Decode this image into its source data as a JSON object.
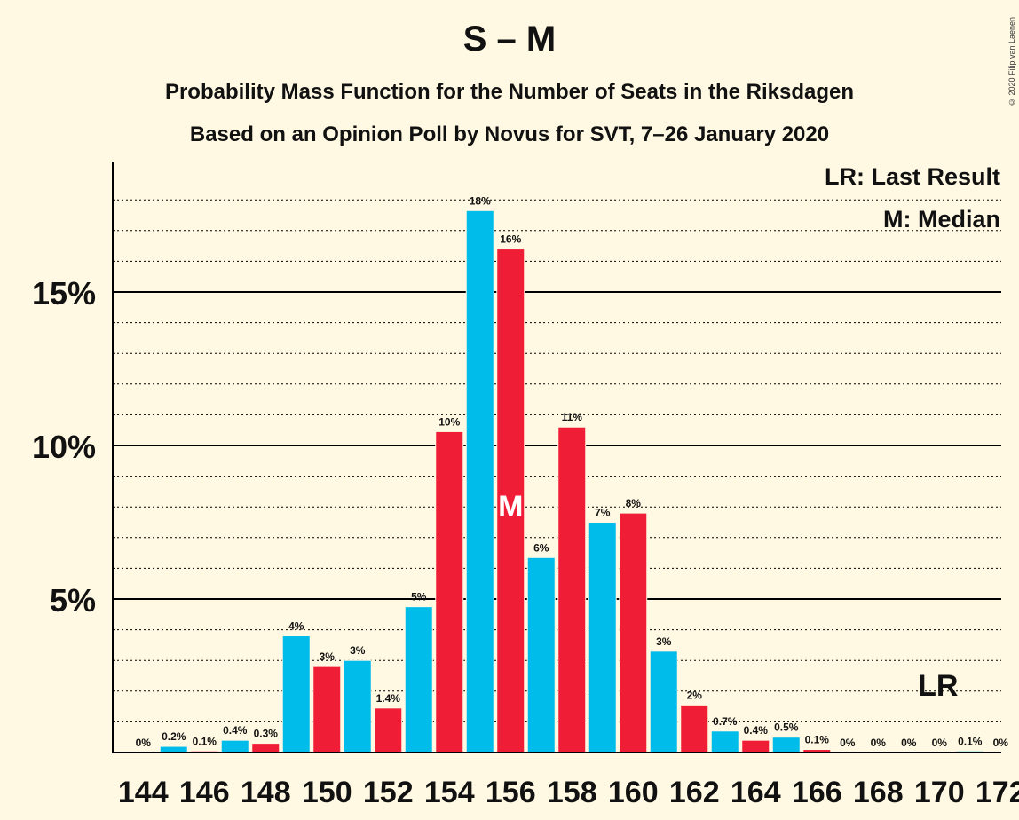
{
  "chart_data": {
    "type": "bar",
    "title": "S – M",
    "subtitle": "Probability Mass Function for the Number of Seats in the Riksdagen",
    "subtitle2": "Based on an Opinion Poll by Novus for SVT, 7–26 January 2020",
    "credit": "© 2020 Filip van Laenen",
    "legend": [
      "LR: Last Result",
      "M: Median"
    ],
    "ylim": [
      0,
      19
    ],
    "yticks": [
      {
        "value": 5,
        "label": "5%"
      },
      {
        "value": 10,
        "label": "10%"
      },
      {
        "value": 15,
        "label": "15%"
      }
    ],
    "xtick_labels": [
      "144",
      "146",
      "148",
      "150",
      "152",
      "154",
      "156",
      "158",
      "160",
      "162",
      "164",
      "166",
      "168",
      "170",
      "172"
    ],
    "median_seat": 156,
    "median_marker": "M",
    "last_result_seat": 171,
    "last_result_marker": "LR",
    "colors": {
      "odd": "#00BCEB",
      "even": "#EF1D35",
      "background": "#FFF8E2"
    },
    "bars": [
      {
        "seat": 144,
        "value": 0,
        "label": "0%"
      },
      {
        "seat": 145,
        "value": 0.2,
        "label": "0.2%"
      },
      {
        "seat": 146,
        "value": 0.05,
        "label": "0.1%"
      },
      {
        "seat": 147,
        "value": 0.4,
        "label": "0.4%"
      },
      {
        "seat": 148,
        "value": 0.3,
        "label": "0.3%"
      },
      {
        "seat": 149,
        "value": 3.8,
        "label": "4%"
      },
      {
        "seat": 150,
        "value": 2.8,
        "label": "3%"
      },
      {
        "seat": 151,
        "value": 3.0,
        "label": "3%"
      },
      {
        "seat": 152,
        "value": 1.45,
        "label": "1.4%"
      },
      {
        "seat": 153,
        "value": 4.75,
        "label": "5%"
      },
      {
        "seat": 154,
        "value": 10.45,
        "label": "10%"
      },
      {
        "seat": 155,
        "value": 17.65,
        "label": "18%"
      },
      {
        "seat": 156,
        "value": 16.4,
        "label": "16%"
      },
      {
        "seat": 157,
        "value": 6.35,
        "label": "6%"
      },
      {
        "seat": 158,
        "value": 10.6,
        "label": "11%"
      },
      {
        "seat": 159,
        "value": 7.5,
        "label": "7%"
      },
      {
        "seat": 160,
        "value": 7.8,
        "label": "8%"
      },
      {
        "seat": 161,
        "value": 3.3,
        "label": "3%"
      },
      {
        "seat": 162,
        "value": 1.55,
        "label": "2%"
      },
      {
        "seat": 163,
        "value": 0.7,
        "label": "0.7%"
      },
      {
        "seat": 164,
        "value": 0.4,
        "label": "0.4%"
      },
      {
        "seat": 165,
        "value": 0.5,
        "label": "0.5%"
      },
      {
        "seat": 166,
        "value": 0.1,
        "label": "0.1%"
      },
      {
        "seat": 167,
        "value": 0,
        "label": "0%"
      },
      {
        "seat": 168,
        "value": 0,
        "label": "0%"
      },
      {
        "seat": 169,
        "value": 0,
        "label": "0%"
      },
      {
        "seat": 170,
        "value": 0,
        "label": "0%"
      },
      {
        "seat": 171,
        "value": 0.05,
        "label": "0.1%"
      },
      {
        "seat": 172,
        "value": 0,
        "label": "0%"
      }
    ]
  }
}
